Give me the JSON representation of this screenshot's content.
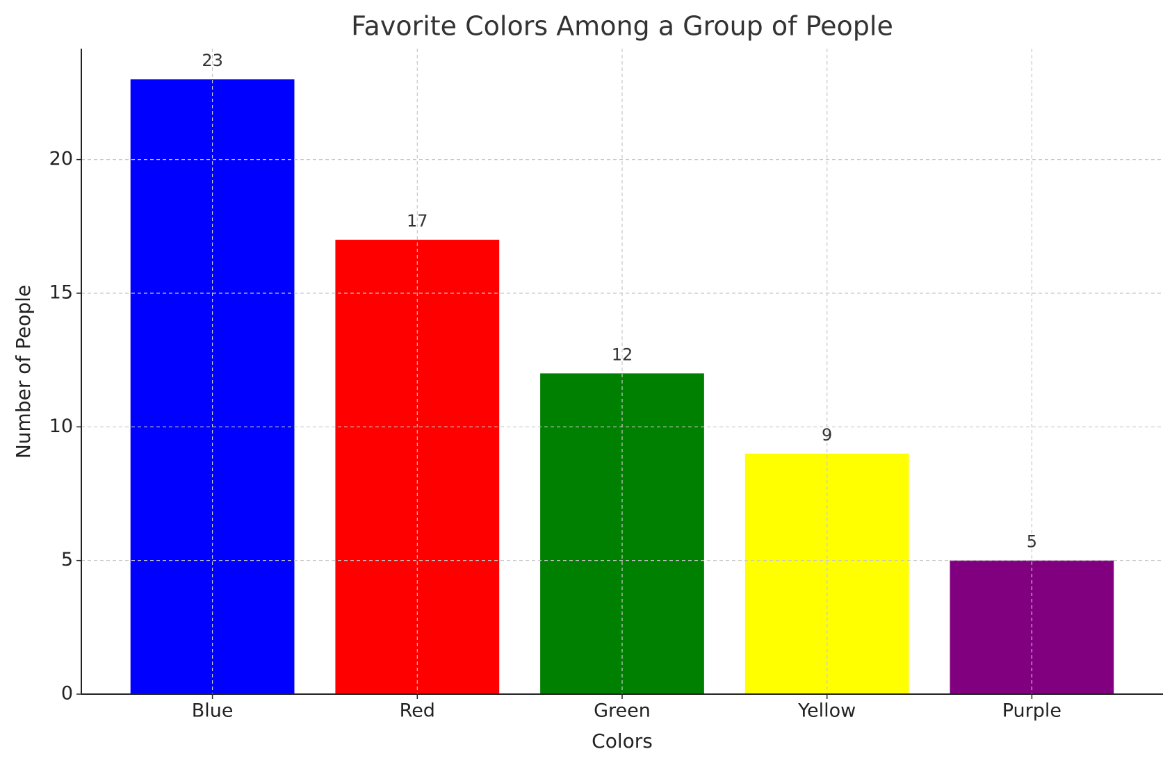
{
  "chart_data": {
    "type": "bar",
    "title": "Favorite Colors Among a Group of People",
    "x_label": "Colors",
    "y_label": "Number of People",
    "categories": [
      "Blue",
      "Red",
      "Green",
      "Yellow",
      "Purple"
    ],
    "values": [
      23,
      17,
      12,
      9,
      5
    ],
    "colors": [
      "#0000ff",
      "#ff0000",
      "#008000",
      "#ffff00",
      "#800080"
    ],
    "ylim": [
      0,
      24.15
    ],
    "yticks": [
      0,
      5,
      10,
      15,
      20
    ],
    "grid": true
  }
}
